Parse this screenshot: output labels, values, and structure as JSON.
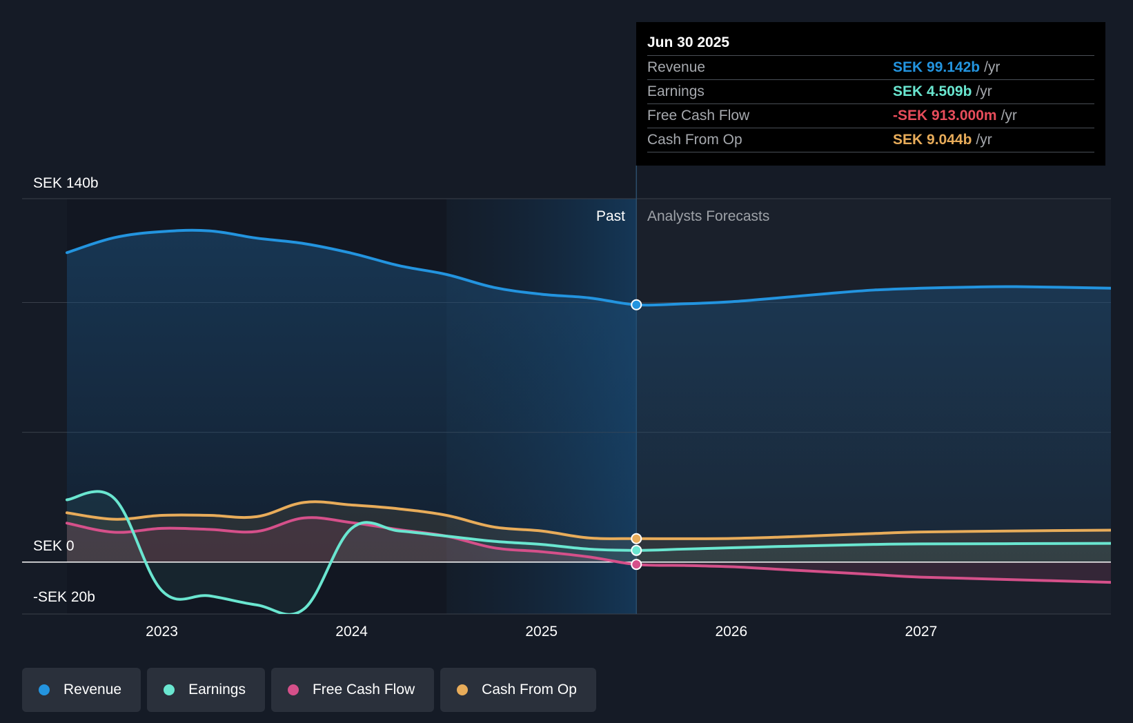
{
  "colors": {
    "revenue": "#2394df",
    "earnings": "#6ae6d0",
    "free_cash_flow": "#d5508a",
    "cash_from_op": "#e8ac5a",
    "negative_value": "#e84d5b"
  },
  "tooltip": {
    "date": "Jun 30 2025",
    "rows": [
      {
        "label": "Revenue",
        "value": "SEK 99.142b",
        "unit": "/yr"
      },
      {
        "label": "Earnings",
        "value": "SEK 4.509b",
        "unit": "/yr"
      },
      {
        "label": "Free Cash Flow",
        "value": "-SEK 913.000m",
        "unit": "/yr"
      },
      {
        "label": "Cash From Op",
        "value": "SEK 9.044b",
        "unit": "/yr"
      }
    ]
  },
  "legend": [
    {
      "label": "Revenue",
      "color": "#2394df"
    },
    {
      "label": "Earnings",
      "color": "#6ae6d0"
    },
    {
      "label": "Free Cash Flow",
      "color": "#d5508a"
    },
    {
      "label": "Cash From Op",
      "color": "#e8ac5a"
    }
  ],
  "chart_data": {
    "type": "line",
    "title": "",
    "xlabel": "",
    "ylabel": "",
    "y_axis_labels": {
      "top": "SEK 140b",
      "zero": "SEK 0",
      "bottom": "-SEK 20b"
    },
    "ylim": [
      -20,
      140
    ],
    "xlim": [
      2022.5,
      2028.0
    ],
    "x_ticks": [
      2023,
      2024,
      2025,
      2026,
      2027
    ],
    "region_labels": {
      "past": "Past",
      "forecast": "Analysts Forecasts"
    },
    "past_end": 2025.5,
    "highlight_start": 2024.5,
    "series": [
      {
        "name": "Revenue",
        "points": [
          [
            2022.5,
            119.2
          ],
          [
            2022.75,
            125
          ],
          [
            2023.0,
            127.3
          ],
          [
            2023.25,
            127.6
          ],
          [
            2023.5,
            124.8
          ],
          [
            2023.75,
            122.7
          ],
          [
            2024.0,
            119.0
          ],
          [
            2024.25,
            114.2
          ],
          [
            2024.5,
            110.8
          ],
          [
            2024.75,
            105.8
          ],
          [
            2025.0,
            103.2
          ],
          [
            2025.25,
            101.8
          ],
          [
            2025.5,
            99.142
          ],
          [
            2025.75,
            99.5
          ],
          [
            2026.0,
            100.3
          ],
          [
            2026.25,
            101.8
          ],
          [
            2026.5,
            103.4
          ],
          [
            2026.75,
            104.8
          ],
          [
            2027.0,
            105.5
          ],
          [
            2027.25,
            105.9
          ],
          [
            2027.5,
            106.1
          ],
          [
            2028.0,
            105.5
          ]
        ]
      },
      {
        "name": "Earnings",
        "points": [
          [
            2022.5,
            24.0
          ],
          [
            2022.75,
            24.5
          ],
          [
            2023.0,
            -11.0
          ],
          [
            2023.25,
            -13.0
          ],
          [
            2023.5,
            -16.5
          ],
          [
            2023.75,
            -18.0
          ],
          [
            2024.0,
            13.0
          ],
          [
            2024.25,
            12.0
          ],
          [
            2024.5,
            10.0
          ],
          [
            2024.75,
            8.0
          ],
          [
            2025.0,
            6.8
          ],
          [
            2025.25,
            5.0
          ],
          [
            2025.5,
            4.509
          ],
          [
            2025.75,
            5.0
          ],
          [
            2026.0,
            5.5
          ],
          [
            2026.25,
            6.0
          ],
          [
            2026.5,
            6.4
          ],
          [
            2026.75,
            6.8
          ],
          [
            2027.0,
            7.0
          ],
          [
            2027.5,
            7.1
          ],
          [
            2028.0,
            7.2
          ]
        ]
      },
      {
        "name": "Free Cash Flow",
        "points": [
          [
            2022.5,
            15.0
          ],
          [
            2022.75,
            11.5
          ],
          [
            2023.0,
            13.0
          ],
          [
            2023.25,
            12.6
          ],
          [
            2023.5,
            11.8
          ],
          [
            2023.75,
            17.0
          ],
          [
            2024.0,
            15.2
          ],
          [
            2024.25,
            12.5
          ],
          [
            2024.5,
            10.0
          ],
          [
            2024.75,
            5.5
          ],
          [
            2025.0,
            4.0
          ],
          [
            2025.25,
            2.0
          ],
          [
            2025.5,
            -0.913
          ],
          [
            2025.75,
            -1.3
          ],
          [
            2026.0,
            -1.8
          ],
          [
            2026.25,
            -2.8
          ],
          [
            2026.5,
            -3.8
          ],
          [
            2026.75,
            -4.8
          ],
          [
            2027.0,
            -5.8
          ],
          [
            2027.5,
            -6.8
          ],
          [
            2028.0,
            -7.8
          ]
        ]
      },
      {
        "name": "Cash From Op",
        "points": [
          [
            2022.5,
            19.0
          ],
          [
            2022.75,
            16.5
          ],
          [
            2023.0,
            18.0
          ],
          [
            2023.25,
            18.0
          ],
          [
            2023.5,
            17.5
          ],
          [
            2023.75,
            23.0
          ],
          [
            2024.0,
            22.0
          ],
          [
            2024.25,
            20.5
          ],
          [
            2024.5,
            18.0
          ],
          [
            2024.75,
            13.5
          ],
          [
            2025.0,
            12.0
          ],
          [
            2025.25,
            9.3
          ],
          [
            2025.5,
            9.044
          ],
          [
            2025.75,
            9.0
          ],
          [
            2026.0,
            9.1
          ],
          [
            2026.25,
            9.6
          ],
          [
            2026.5,
            10.3
          ],
          [
            2026.75,
            11.0
          ],
          [
            2027.0,
            11.6
          ],
          [
            2027.5,
            12.0
          ],
          [
            2028.0,
            12.3
          ]
        ]
      }
    ]
  }
}
